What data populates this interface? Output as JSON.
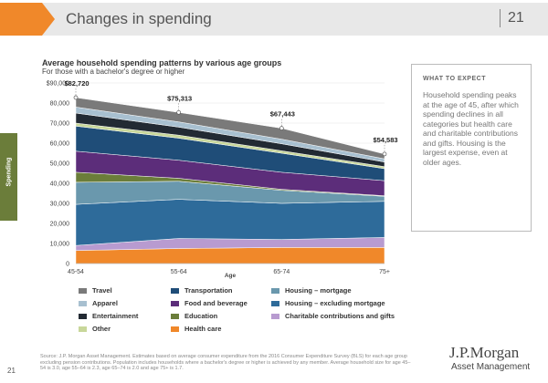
{
  "header": {
    "title": "Changes in spending",
    "page_number": "21",
    "accent": "#f0882a"
  },
  "side_tab": {
    "label": "Spending",
    "color": "#6b7d3a"
  },
  "chart_data": {
    "type": "area",
    "stacked": true,
    "title": "Average household spending patterns by various age groups",
    "subtitle": "For those with a bachelor's degree or higher",
    "xlabel": "Age",
    "ylabel": "",
    "categories": [
      "45-54",
      "55-64",
      "65-74",
      "75+"
    ],
    "ylim": [
      0,
      90000
    ],
    "y_ticks": [
      0,
      10000,
      20000,
      30000,
      40000,
      50000,
      60000,
      70000,
      80000,
      90000
    ],
    "y_tick_labels": [
      "0",
      "10,000",
      "20,000",
      "30,000",
      "40,000",
      "50,000",
      "60,000",
      "70,000",
      "80,000",
      "$90,000"
    ],
    "totals": [
      82720,
      75313,
      67443,
      54583
    ],
    "total_labels": [
      "$82,720",
      "$75,313",
      "$67,443",
      "$54,583"
    ],
    "series": [
      {
        "name": "Health care",
        "color": "#f0882a",
        "values": [
          6500,
          7500,
          8000,
          8000
        ]
      },
      {
        "name": "Charitable contributions and gifts",
        "color": "#b89bd0",
        "values": [
          2500,
          5000,
          4000,
          5000
        ]
      },
      {
        "name": "Housing – excluding mortgage",
        "color": "#2e6b9a",
        "values": [
          20500,
          19500,
          18000,
          18000
        ]
      },
      {
        "name": "Housing – mortgage",
        "color": "#6a98ad",
        "values": [
          11000,
          9000,
          6500,
          2500
        ]
      },
      {
        "name": "Education",
        "color": "#6b7d3a",
        "values": [
          5000,
          1500,
          500,
          300
        ]
      },
      {
        "name": "Food and beverage",
        "color": "#5c2d7a",
        "values": [
          10500,
          9000,
          8500,
          7500
        ]
      },
      {
        "name": "Transportation",
        "color": "#1f4d78",
        "values": [
          12500,
          11000,
          9500,
          6000
        ]
      },
      {
        "name": "Other",
        "color": "#c8d79a",
        "values": [
          1500,
          1500,
          1200,
          1000
        ]
      },
      {
        "name": "Entertainment",
        "color": "#222a33",
        "values": [
          5000,
          4000,
          3500,
          2300
        ]
      },
      {
        "name": "Apparel",
        "color": "#a8c0d0",
        "values": [
          3000,
          2600,
          2300,
          1600
        ]
      },
      {
        "name": "Travel",
        "color": "#7a7a7a",
        "values": [
          4720,
          4713,
          5443,
          2383
        ]
      }
    ]
  },
  "legend_items": [
    {
      "label": "Travel",
      "color": "#7a7a7a"
    },
    {
      "label": "Transportation",
      "color": "#1f4d78"
    },
    {
      "label": "Housing – mortgage",
      "color": "#6a98ad"
    },
    {
      "label": "Apparel",
      "color": "#a8c0d0"
    },
    {
      "label": "Food and beverage",
      "color": "#5c2d7a"
    },
    {
      "label": "Housing – excluding mortgage",
      "color": "#2e6b9a"
    },
    {
      "label": "Entertainment",
      "color": "#222a33"
    },
    {
      "label": "Education",
      "color": "#6b7d3a"
    },
    {
      "label": "Charitable contributions and gifts",
      "color": "#b89bd0"
    },
    {
      "label": "Other",
      "color": "#c8d79a"
    },
    {
      "label": "Health care",
      "color": "#f0882a"
    }
  ],
  "expect_box": {
    "heading": "WHAT TO EXPECT",
    "body": "Household spending peaks at the age of 45, after which spending declines in all categories but health care and charitable contributions and gifts. Housing is the largest expense, even at older ages."
  },
  "source_text": "Source: J.P. Morgan Asset Management. Estimates based on average consumer expenditure from the 2016 Consumer Expenditure Survey (BLS) for each age group excluding pension contributions. Population includes households where a bachelor's degree or higher is achieved by any member. Average household size for age 45–54 is 3.0, age 55–64 is 2.3, age 65–74 is 2.0 and age 75+ is 1.7.",
  "footer": {
    "page": "21",
    "logo_line1": "J.P.Morgan",
    "logo_line2": "Asset Management"
  }
}
